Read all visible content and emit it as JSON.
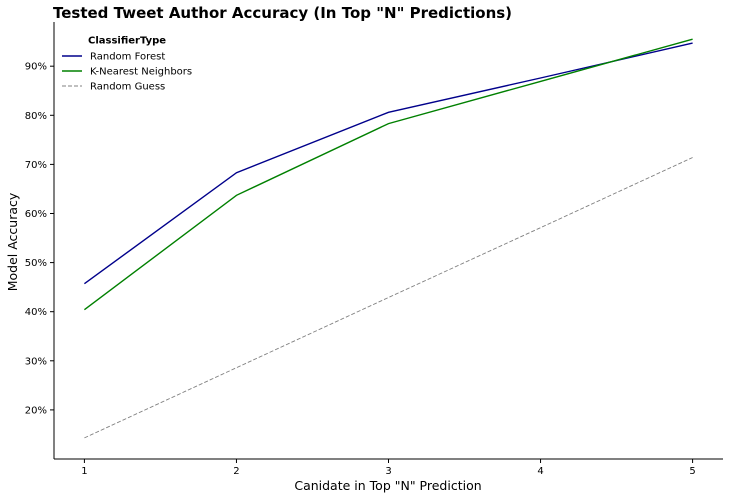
{
  "chart_data": {
    "type": "line",
    "title": "Tested Tweet Author Accuracy (In Top \"N\" Predictions)",
    "xlabel": "Canidate in Top \"N\" Prediction",
    "ylabel": "Model Accuracy",
    "x": [
      1,
      2,
      3,
      4,
      5
    ],
    "x_ticks": [
      "1",
      "2",
      "3",
      "4",
      "5"
    ],
    "y_ticks": [
      "20%",
      "30%",
      "40%",
      "50%",
      "60%",
      "70%",
      "80%",
      "90%"
    ],
    "y_tick_values": [
      0.2,
      0.3,
      0.4,
      0.5,
      0.6,
      0.7,
      0.8,
      0.9
    ],
    "xlim": [
      0.8,
      5.2
    ],
    "ylim": [
      0.1,
      0.99
    ],
    "grid": false,
    "legend_title": "ClassifierType",
    "legend_position": "top-left",
    "series": [
      {
        "name": "Random Forest",
        "color": "#00008b",
        "style": "solid",
        "values": [
          0.457,
          0.683,
          0.806,
          0.876,
          0.947
        ]
      },
      {
        "name": "K-Nearest Neighbors",
        "color": "#008000",
        "style": "solid",
        "values": [
          0.404,
          0.637,
          0.783,
          0.869,
          0.955
        ]
      },
      {
        "name": "Random Guess",
        "color": "#808080",
        "style": "dashed",
        "values": [
          0.143,
          0.286,
          0.429,
          0.571,
          0.714
        ]
      }
    ]
  }
}
